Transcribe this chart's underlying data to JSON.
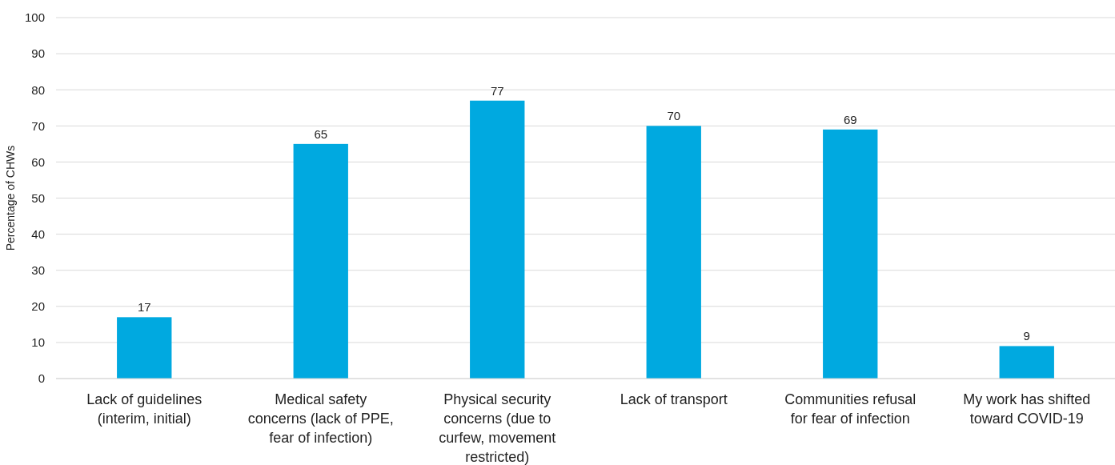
{
  "chart_data": {
    "type": "bar",
    "ylabel": "Percentage of CHWs",
    "categories": [
      "Lack of guidelines (interim, initial)",
      "Medical safety concerns (lack of PPE, fear of infection)",
      "Physical security concerns (due to curfew, movement restricted)",
      "Lack of transport",
      "Communities refusal for fear of infection",
      "My work has shifted toward COVID-19"
    ],
    "values": [
      17,
      65,
      77,
      70,
      69,
      9
    ],
    "color": "#00a9e0",
    "ylim": [
      0,
      100
    ],
    "yticks": [
      0,
      10,
      20,
      30,
      40,
      50,
      60,
      70,
      80,
      90,
      100
    ],
    "grid": "y",
    "data_labels": true
  }
}
